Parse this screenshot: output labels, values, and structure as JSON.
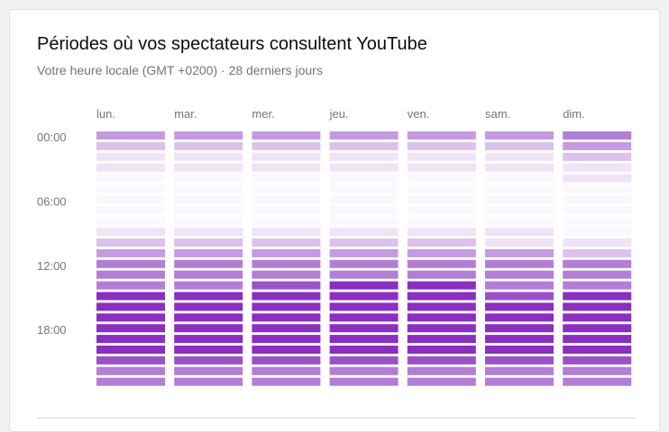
{
  "header": {
    "title": "Périodes où vos spectateurs consultent YouTube",
    "subtitle": "Votre heure locale (GMT +0200) · 28 derniers jours"
  },
  "chart_data": {
    "type": "heatmap",
    "title": "Périodes où vos spectateurs consultent YouTube",
    "subtitle": "Votre heure locale (GMT +0200) · 28 derniers jours",
    "days": [
      "lun.",
      "mar.",
      "mer.",
      "jeu.",
      "ven.",
      "sam.",
      "dim."
    ],
    "hour_labels": [
      {
        "hour": 0,
        "label": "00:00"
      },
      {
        "hour": 6,
        "label": "06:00"
      },
      {
        "hour": 12,
        "label": "12:00"
      },
      {
        "hour": 18,
        "label": "18:00"
      }
    ],
    "hours_per_day": 24,
    "scale": [
      {
        "level": 0,
        "color": "#fbf8fd"
      },
      {
        "level": 1,
        "color": "#f0e3f6"
      },
      {
        "level": 2,
        "color": "#dcc1ec"
      },
      {
        "level": 3,
        "color": "#c49be0"
      },
      {
        "level": 4,
        "color": "#b27ed6"
      },
      {
        "level": 5,
        "color": "#9b52c9"
      },
      {
        "level": 6,
        "color": "#8a2fbf"
      }
    ],
    "levels": [
      [
        3,
        3,
        3,
        3,
        3,
        3,
        4
      ],
      [
        2,
        2,
        2,
        2,
        2,
        2,
        3
      ],
      [
        1,
        1,
        1,
        1,
        1,
        1,
        2
      ],
      [
        1,
        1,
        1,
        1,
        1,
        1,
        1
      ],
      [
        0,
        0,
        0,
        0,
        0,
        0,
        1
      ],
      [
        0,
        0,
        0,
        0,
        0,
        0,
        0
      ],
      [
        0,
        0,
        0,
        0,
        0,
        0,
        0
      ],
      [
        0,
        0,
        0,
        0,
        0,
        0,
        0
      ],
      [
        0,
        0,
        0,
        0,
        0,
        0,
        0
      ],
      [
        1,
        1,
        1,
        1,
        1,
        1,
        0
      ],
      [
        2,
        2,
        2,
        2,
        2,
        1,
        1
      ],
      [
        3,
        3,
        3,
        3,
        3,
        3,
        2
      ],
      [
        4,
        4,
        4,
        4,
        4,
        4,
        4
      ],
      [
        4,
        4,
        4,
        4,
        4,
        4,
        4
      ],
      [
        4,
        4,
        5,
        6,
        6,
        4,
        4
      ],
      [
        6,
        6,
        6,
        6,
        6,
        5,
        6
      ],
      [
        6,
        6,
        6,
        6,
        6,
        6,
        6
      ],
      [
        6,
        6,
        6,
        6,
        6,
        6,
        6
      ],
      [
        6,
        6,
        6,
        6,
        6,
        6,
        6
      ],
      [
        6,
        6,
        6,
        6,
        6,
        6,
        6
      ],
      [
        6,
        6,
        6,
        6,
        6,
        6,
        6
      ],
      [
        5,
        5,
        5,
        5,
        5,
        5,
        5
      ],
      [
        4,
        4,
        4,
        4,
        4,
        4,
        4
      ],
      [
        4,
        4,
        4,
        4,
        4,
        4,
        4
      ]
    ]
  }
}
